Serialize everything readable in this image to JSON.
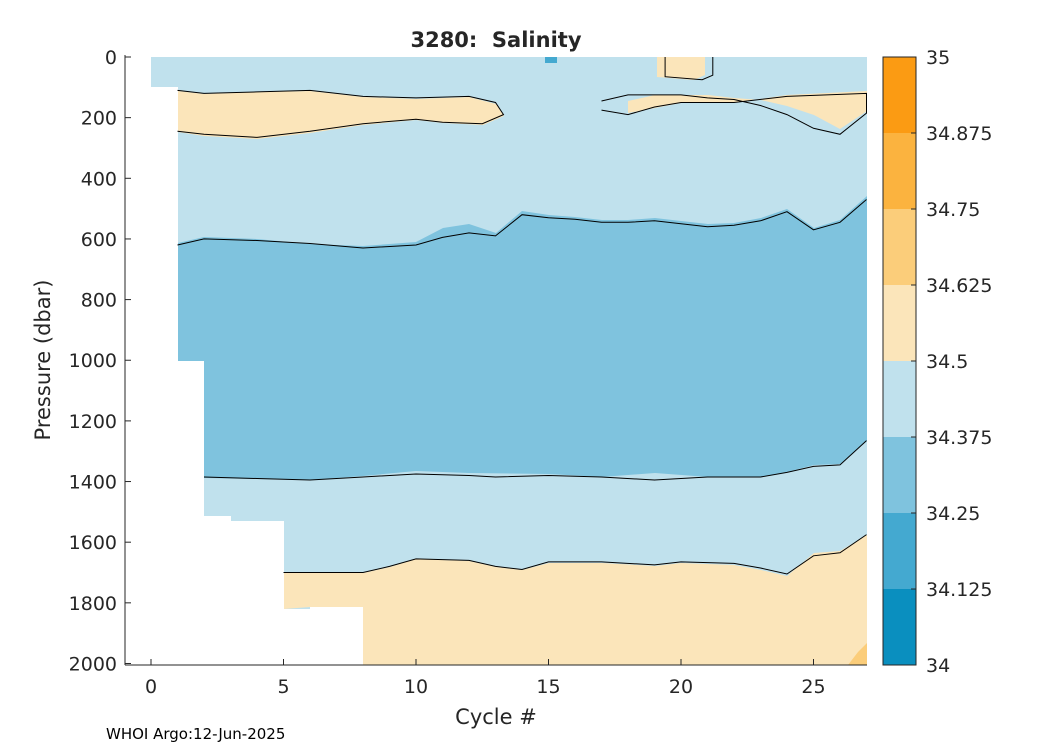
{
  "footer": "WHOI Argo:12-Jun-2025",
  "chart_data": {
    "type": "heatmap",
    "title": "3280:  Salinity",
    "xlabel": "Cycle #",
    "ylabel": "Pressure (dbar)",
    "xlim": [
      -0.5,
      27
    ],
    "ylim": [
      2010,
      0
    ],
    "x_ticks": [
      0,
      5,
      10,
      15,
      20,
      25
    ],
    "y_ticks": [
      0,
      200,
      400,
      600,
      800,
      1000,
      1200,
      1400,
      1600,
      1800,
      2000
    ],
    "colorbar": {
      "levels": [
        34,
        34.125,
        34.25,
        34.375,
        34.5,
        34.625,
        34.75,
        34.875,
        35
      ],
      "tick_labels": [
        "34",
        "34.125",
        "34.25",
        "34.375",
        "34.5",
        "34.625",
        "34.75",
        "34.875",
        "35"
      ],
      "colors": [
        "#0a8fbf",
        "#44a9d0",
        "#7fc3de",
        "#c0e1ed",
        "#fbe5ba",
        "#fbcd7a",
        "#fbb33f",
        "#fb9b13"
      ]
    },
    "profile_max_depth": [
      {
        "cycle": 0,
        "pressure": 100
      },
      {
        "cycle": 1,
        "pressure": 1005
      },
      {
        "cycle": 2,
        "pressure": 1515
      },
      {
        "cycle": 3,
        "pressure": 1530
      },
      {
        "cycle": 5,
        "pressure": 1820
      },
      {
        "cycle": 6,
        "pressure": 1815
      },
      {
        "cycle": 8,
        "pressure": 2005
      }
    ],
    "contours": [
      {
        "level": 34.375,
        "points": [
          [
            1,
            620
          ],
          [
            2,
            600
          ],
          [
            4,
            605
          ],
          [
            6,
            615
          ],
          [
            8,
            630
          ],
          [
            10,
            620
          ],
          [
            11,
            595
          ],
          [
            12,
            580
          ],
          [
            13,
            590
          ],
          [
            14,
            520
          ],
          [
            15,
            530
          ],
          [
            16,
            535
          ],
          [
            17,
            545
          ],
          [
            18,
            545
          ],
          [
            19,
            540
          ],
          [
            20,
            550
          ],
          [
            21,
            560
          ],
          [
            22,
            555
          ],
          [
            23,
            540
          ],
          [
            24,
            510
          ],
          [
            25,
            570
          ],
          [
            26,
            545
          ],
          [
            27,
            470
          ]
        ]
      },
      {
        "level": 34.375,
        "points": [
          [
            2,
            1385
          ],
          [
            4,
            1390
          ],
          [
            6,
            1395
          ],
          [
            8,
            1385
          ],
          [
            10,
            1375
          ],
          [
            12,
            1380
          ],
          [
            13,
            1385
          ],
          [
            15,
            1380
          ],
          [
            17,
            1385
          ],
          [
            19,
            1395
          ],
          [
            21,
            1385
          ],
          [
            23,
            1385
          ],
          [
            24,
            1370
          ],
          [
            25,
            1350
          ],
          [
            26,
            1345
          ],
          [
            27,
            1265
          ]
        ]
      },
      {
        "level": 34.5,
        "points": [
          [
            5,
            1700
          ],
          [
            8,
            1700
          ],
          [
            9,
            1680
          ],
          [
            10,
            1655
          ],
          [
            12,
            1660
          ],
          [
            13,
            1680
          ],
          [
            14,
            1690
          ],
          [
            15,
            1665
          ],
          [
            17,
            1665
          ],
          [
            19,
            1675
          ],
          [
            20,
            1665
          ],
          [
            22,
            1670
          ],
          [
            23,
            1685
          ],
          [
            24,
            1705
          ],
          [
            25,
            1645
          ],
          [
            26,
            1635
          ],
          [
            27,
            1575
          ]
        ]
      },
      {
        "level": 34.5,
        "points": [
          [
            1,
            110
          ],
          [
            2,
            120
          ],
          [
            4,
            115
          ],
          [
            6,
            110
          ],
          [
            8,
            130
          ],
          [
            10,
            135
          ],
          [
            12,
            130
          ],
          [
            13,
            150
          ],
          [
            13.3,
            190
          ],
          [
            12.5,
            220
          ],
          [
            11,
            215
          ],
          [
            10,
            205
          ],
          [
            8,
            220
          ],
          [
            6,
            245
          ],
          [
            4,
            265
          ],
          [
            2,
            255
          ],
          [
            1,
            245
          ]
        ]
      },
      {
        "level": 34.5,
        "points": [
          [
            17,
            145
          ],
          [
            18,
            125
          ],
          [
            20,
            125
          ],
          [
            21,
            135
          ],
          [
            22,
            140
          ],
          [
            23,
            160
          ],
          [
            24,
            190
          ],
          [
            25,
            235
          ],
          [
            26,
            255
          ],
          [
            27,
            185
          ],
          [
            27,
            120
          ],
          [
            24,
            130
          ],
          [
            22,
            150
          ],
          [
            20,
            150
          ],
          [
            19,
            165
          ],
          [
            18,
            190
          ],
          [
            17,
            175
          ]
        ]
      },
      {
        "level": 34.5,
        "points": [
          [
            19.4,
            0
          ],
          [
            19.4,
            65
          ],
          [
            20.8,
            75
          ],
          [
            21.2,
            60
          ],
          [
            21.2,
            0
          ]
        ]
      }
    ]
  }
}
